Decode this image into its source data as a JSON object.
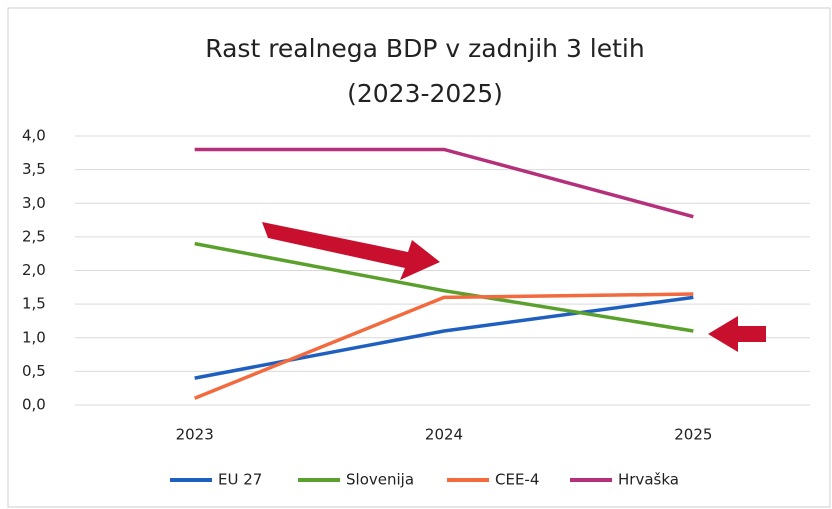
{
  "chart_data": {
    "type": "line",
    "title": "Rast realnega BDP v zadnjih 3 letih",
    "subtitle": "(2023-2025)",
    "categories": [
      "2023",
      "2024",
      "2025"
    ],
    "series": [
      {
        "name": "EU 27",
        "color": "#1f5fbf",
        "values": [
          0.4,
          1.1,
          1.6
        ]
      },
      {
        "name": "Slovenija",
        "color": "#5aa02c",
        "values": [
          2.4,
          1.7,
          1.1
        ]
      },
      {
        "name": "CEE-4",
        "color": "#f26a3d",
        "values": [
          0.1,
          1.6,
          1.65
        ]
      },
      {
        "name": "Hrvaška",
        "color": "#b5307a",
        "values": [
          3.8,
          3.8,
          2.8
        ]
      }
    ],
    "ylim": [
      0,
      4
    ],
    "yticks": [
      {
        "value": 0,
        "label": "0,0"
      },
      {
        "value": 0.5,
        "label": "0,5"
      },
      {
        "value": 1,
        "label": "1,0"
      },
      {
        "value": 1.5,
        "label": "1,5"
      },
      {
        "value": 2,
        "label": "2,0"
      },
      {
        "value": 2.5,
        "label": "2,5"
      },
      {
        "value": 3,
        "label": "3,0"
      },
      {
        "value": 3.5,
        "label": "3,5"
      },
      {
        "value": 4,
        "label": "4,0"
      }
    ],
    "grid": true,
    "legend": "bottom"
  }
}
